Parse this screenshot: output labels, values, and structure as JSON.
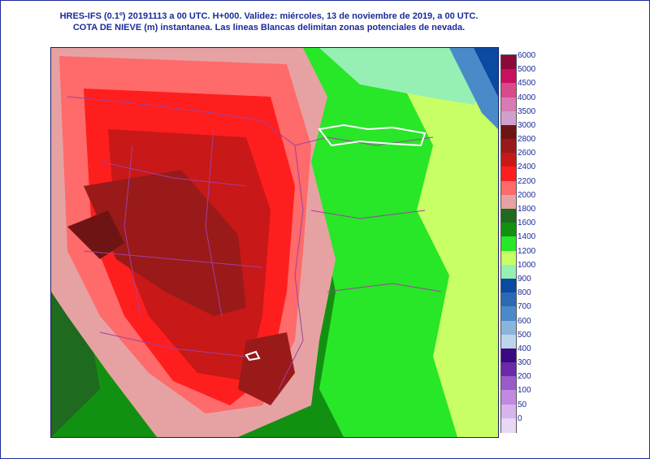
{
  "header": {
    "line1": "HRES-IFS (0.1º) 20191113 a 00 UTC.  H+000. Validez: miércoles, 13 de noviembre de 2019,  a  00 UTC.",
    "line2": "COTA DE NIEVE (m) instantanea. Las lineas Blancas delimitan zonas potenciales de nevada."
  },
  "legend": {
    "levels": [
      {
        "label": "6000",
        "color": "#8b0a3a"
      },
      {
        "label": "5000",
        "color": "#c8105e"
      },
      {
        "label": "4500",
        "color": "#d84a8a"
      },
      {
        "label": "4000",
        "color": "#d87ab4"
      },
      {
        "label": "3500",
        "color": "#d0a0cc"
      },
      {
        "label": "3000",
        "color": "#6e1414"
      },
      {
        "label": "2800",
        "color": "#9a1a1a"
      },
      {
        "label": "2600",
        "color": "#c81818"
      },
      {
        "label": "2400",
        "color": "#ff1e1e"
      },
      {
        "label": "2200",
        "color": "#ff6a6a"
      },
      {
        "label": "2000",
        "color": "#e6a2a2"
      },
      {
        "label": "1800",
        "color": "#1e6a1e"
      },
      {
        "label": "1600",
        "color": "#129012"
      },
      {
        "label": "1400",
        "color": "#28e628"
      },
      {
        "label": "1200",
        "color": "#c8ff64"
      },
      {
        "label": "1000",
        "color": "#96f0b4"
      },
      {
        "label": "900",
        "color": "#0a4aa0"
      },
      {
        "label": "800",
        "color": "#2a6ab4"
      },
      {
        "label": "700",
        "color": "#4a8ac8"
      },
      {
        "label": "600",
        "color": "#8ab4dc"
      },
      {
        "label": "500",
        "color": "#bcd4ec"
      },
      {
        "label": "400",
        "color": "#3a0a80"
      },
      {
        "label": "300",
        "color": "#6a2aaa"
      },
      {
        "label": "200",
        "color": "#9a5ac8"
      },
      {
        "label": "100",
        "color": "#c08ae0"
      },
      {
        "label": "50",
        "color": "#d8b4ee"
      },
      {
        "label": "0",
        "color": "#e8d8f6"
      }
    ]
  }
}
